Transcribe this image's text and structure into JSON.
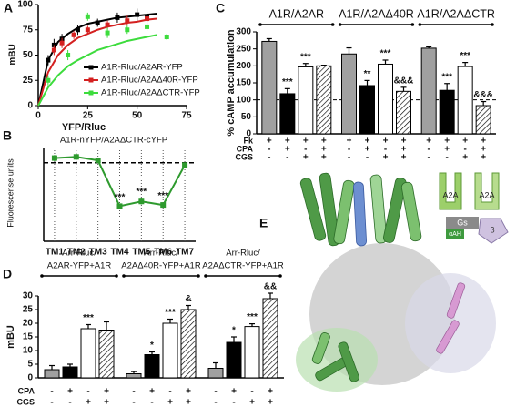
{
  "chart_data": [
    {
      "panel": "A",
      "type": "scatter",
      "xlabel": "YFP/Rluc",
      "ylabel": "mBU",
      "xlim": [
        0,
        75
      ],
      "ylim": [
        0,
        100
      ],
      "xticks": [
        0,
        25,
        50,
        75
      ],
      "yticks": [
        0,
        25,
        50,
        75,
        100
      ],
      "fit_x": [
        0,
        5,
        10,
        15,
        20,
        25,
        30,
        35,
        40,
        45,
        50,
        55,
        60
      ],
      "series": [
        {
          "name": "A1R-Rluc/A2AR-YFP",
          "color": "#000000",
          "x": [
            5,
            8,
            12,
            20,
            30,
            40,
            50,
            55
          ],
          "values": [
            45,
            60,
            66,
            75,
            82,
            87,
            90,
            88
          ],
          "errors": [
            5,
            6,
            5,
            5,
            4,
            5,
            6,
            5
          ],
          "fit": [
            0,
            45,
            63,
            71,
            77,
            81,
            83,
            85,
            87,
            88,
            89,
            90,
            91
          ]
        },
        {
          "name": "A1R-Rluc/A2AΔ40R-YFP",
          "color": "#d42020",
          "x": [
            8,
            12,
            18,
            25,
            35,
            45,
            55
          ],
          "values": [
            55,
            62,
            70,
            75,
            80,
            84,
            86
          ],
          "errors": [
            5,
            5,
            4,
            4,
            4,
            5,
            5
          ],
          "fit": [
            0,
            33,
            50,
            60,
            67,
            71,
            75,
            78,
            80,
            82,
            83,
            85,
            86
          ]
        },
        {
          "name": "A1R-Rluc/A2AΔCTR-YFP",
          "color": "#3ddc3d",
          "x": [
            5,
            15,
            25,
            35,
            45,
            55,
            65
          ],
          "values": [
            25,
            50,
            88,
            72,
            75,
            78,
            68
          ],
          "errors": [
            5,
            5,
            4,
            5,
            4,
            4,
            3
          ],
          "fit": [
            0,
            18,
            30,
            39,
            45,
            50,
            55,
            58,
            61,
            64,
            66,
            68,
            70
          ]
        }
      ]
    },
    {
      "panel": "B",
      "type": "line",
      "title": "A1R-nYFP/A2AΔCTR-cYFP",
      "ylabel": "Fluorescense units",
      "categories": [
        "TM1",
        "TM2",
        "TM3",
        "TM4",
        "TM5",
        "TM6",
        "TM7"
      ],
      "values": [
        7100,
        7200,
        6900,
        3000,
        3400,
        3100,
        6500
      ],
      "errors": [
        250,
        250,
        200,
        200,
        250,
        200,
        200
      ],
      "annotations": [
        null,
        null,
        null,
        "***",
        "***",
        "***",
        null
      ],
      "color": "#2e9a2e",
      "ylim": [
        0,
        8000
      ],
      "reference_line": 6700
    },
    {
      "panel": "C",
      "type": "bar",
      "ylabel": "% cAMP accumulation",
      "ylim": [
        0,
        300
      ],
      "yticks": [
        0,
        50,
        100,
        150,
        200,
        250,
        300
      ],
      "reference_line": 100,
      "groups": [
        "A1R/A2AR",
        "A1R/A2AΔ40R",
        "A1R/A2AΔCTR"
      ],
      "values": [
        272,
        118,
        197,
        200,
        235,
        142,
        205,
        125,
        252,
        128,
        198,
        83
      ],
      "errors": [
        8,
        15,
        10,
        2,
        18,
        15,
        12,
        12,
        4,
        20,
        12,
        12
      ],
      "annotations": [
        null,
        "***",
        "***",
        null,
        null,
        "**",
        "***",
        "&&&",
        null,
        "***",
        "***",
        "&&&"
      ],
      "bar_fills": [
        "#a0a0a0",
        "#000000",
        "#ffffff",
        "hatch"
      ],
      "conditions": [
        {
          "label": "Fk",
          "signs": [
            "+",
            "+",
            "+",
            "+",
            "+",
            "+",
            "+",
            "+",
            "+",
            "+",
            "+",
            "+"
          ]
        },
        {
          "label": "CPA",
          "signs": [
            "-",
            "+",
            "-",
            "+",
            "-",
            "+",
            "-",
            "+",
            "-",
            "+",
            "-",
            "+"
          ]
        },
        {
          "label": "CGS",
          "signs": [
            "-",
            "-",
            "+",
            "+",
            "-",
            "-",
            "+",
            "+",
            "-",
            "-",
            "+",
            "+"
          ]
        }
      ]
    },
    {
      "panel": "D",
      "type": "bar",
      "ylabel": "mBU",
      "ylim": [
        0,
        30
      ],
      "yticks": [
        0,
        5,
        10,
        15,
        20,
        25,
        30
      ],
      "groups": [
        [
          "Arr-Rluc/",
          "A2AR-YFP+A1R"
        ],
        [
          "Arr-Rluc/",
          "A2AΔ40R-YFP+A1R"
        ],
        [
          "Arr-Rluc/",
          "A2AΔCTR-YFP+A1R"
        ]
      ],
      "values": [
        3,
        4,
        18,
        17.5,
        1.5,
        8.5,
        20,
        25,
        3.5,
        13,
        18.8,
        29
      ],
      "errors": [
        1.5,
        1,
        1.5,
        3,
        0.8,
        1,
        1.5,
        1.5,
        2,
        2,
        1,
        2
      ],
      "annotations": [
        null,
        null,
        "***",
        null,
        null,
        "*",
        "***",
        "&",
        null,
        "*",
        "***",
        "&&"
      ],
      "bar_fills": [
        "#a0a0a0",
        "#000000",
        "#ffffff",
        "hatch"
      ],
      "conditions": [
        {
          "label": "CPA",
          "signs": [
            "-",
            "+",
            "-",
            "+",
            "-",
            "+",
            "-",
            "+",
            "-",
            "+",
            "-",
            "+"
          ]
        },
        {
          "label": "CGS",
          "signs": [
            "-",
            "-",
            "+",
            "+",
            "-",
            "-",
            "+",
            "+",
            "-",
            "-",
            "+",
            "+"
          ]
        }
      ]
    }
  ],
  "structure": {
    "panel": "E",
    "labels": [
      "A2A",
      "A2A",
      "Gs",
      "αAH",
      "β"
    ]
  }
}
